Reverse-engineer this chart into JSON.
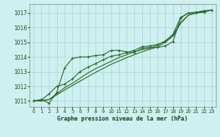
{
  "title": "Graphe pression niveau de la mer (hPa)",
  "bg_color": "#cff0f0",
  "grid_color": "#aad4d4",
  "line_color": "#2d6a2d",
  "xlim": [
    -0.5,
    23.5
  ],
  "ylim": [
    1010.6,
    1017.6
  ],
  "xticks": [
    0,
    1,
    2,
    3,
    4,
    5,
    6,
    7,
    8,
    9,
    10,
    11,
    12,
    13,
    14,
    15,
    16,
    17,
    18,
    19,
    20,
    21,
    22,
    23
  ],
  "yticks": [
    1011,
    1012,
    1013,
    1014,
    1015,
    1016,
    1017
  ],
  "series1": {
    "x": [
      0,
      1,
      2,
      3,
      4,
      5,
      6,
      7,
      8,
      9,
      10,
      11,
      12,
      13,
      14,
      15,
      16,
      17,
      18,
      19,
      20,
      21,
      22,
      23
    ],
    "y": [
      1011.0,
      1011.1,
      1010.85,
      1011.6,
      1013.25,
      1013.9,
      1014.0,
      1014.0,
      1014.1,
      1014.15,
      1014.45,
      1014.45,
      1014.35,
      1014.3,
      1014.6,
      1014.65,
      1014.65,
      1014.75,
      1015.05,
      1016.65,
      1017.0,
      1017.0,
      1017.05,
      1017.2
    ],
    "marker": true
  },
  "series2": {
    "x": [
      0,
      1,
      2,
      3,
      4,
      5,
      6,
      7,
      8,
      9,
      10,
      11,
      12,
      13,
      14,
      15,
      16,
      17,
      18,
      19,
      20,
      21,
      22,
      23
    ],
    "y": [
      1011.0,
      1011.05,
      1011.5,
      1012.0,
      1012.15,
      1012.5,
      1013.0,
      1013.3,
      1013.55,
      1013.8,
      1014.05,
      1014.15,
      1014.3,
      1014.45,
      1014.7,
      1014.75,
      1014.85,
      1015.05,
      1015.55,
      1016.7,
      1017.0,
      1017.05,
      1017.15,
      1017.2
    ],
    "marker": true
  },
  "series3": {
    "x": [
      0,
      1,
      2,
      3,
      4,
      5,
      6,
      7,
      8,
      9,
      10,
      11,
      12,
      13,
      14,
      15,
      16,
      17,
      18,
      19,
      20,
      21,
      22,
      23
    ],
    "y": [
      1011.0,
      1011.0,
      1011.1,
      1011.5,
      1011.9,
      1012.2,
      1012.55,
      1012.9,
      1013.2,
      1013.45,
      1013.7,
      1013.95,
      1014.15,
      1014.35,
      1014.5,
      1014.6,
      1014.8,
      1015.1,
      1015.5,
      1016.35,
      1016.85,
      1017.0,
      1017.1,
      1017.2
    ],
    "marker": false
  },
  "series4": {
    "x": [
      0,
      1,
      2,
      3,
      4,
      5,
      6,
      7,
      8,
      9,
      10,
      11,
      12,
      13,
      14,
      15,
      16,
      17,
      18,
      19,
      20,
      21,
      22,
      23
    ],
    "y": [
      1011.0,
      1011.02,
      1011.1,
      1011.42,
      1011.75,
      1012.05,
      1012.35,
      1012.65,
      1012.95,
      1013.22,
      1013.5,
      1013.72,
      1013.95,
      1014.15,
      1014.35,
      1014.52,
      1014.68,
      1015.0,
      1015.42,
      1016.3,
      1016.85,
      1017.0,
      1017.1,
      1017.2
    ],
    "marker": false
  }
}
